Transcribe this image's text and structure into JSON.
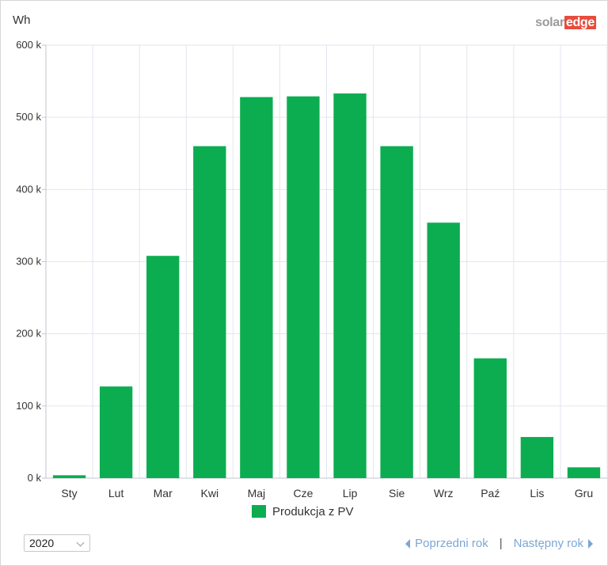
{
  "header": {
    "unit": "Wh",
    "logo_left": "solar",
    "logo_right": "edge"
  },
  "controls": {
    "year_value": "2020",
    "prev_label": "Poprzedni rok",
    "separator": "|",
    "next_label": "Następny rok"
  },
  "colors": {
    "bar": "#0cad50",
    "grid": "#e2e6ee",
    "link": "#7ba7d4"
  },
  "chart_data": {
    "type": "bar",
    "categories": [
      "Sty",
      "Lut",
      "Mar",
      "Kwi",
      "Maj",
      "Cze",
      "Lip",
      "Sie",
      "Wrz",
      "Paź",
      "Lis",
      "Gru"
    ],
    "series": [
      {
        "name": "Produkcja z PV",
        "values": [
          4000,
          127000,
          308000,
          460000,
          528000,
          529000,
          533000,
          460000,
          354000,
          166000,
          57000,
          15000
        ]
      }
    ],
    "ylabel": "Wh",
    "ylim": [
      0,
      600000
    ],
    "yticks": [
      0,
      100000,
      200000,
      300000,
      400000,
      500000,
      600000
    ],
    "ytick_labels": [
      "0 k",
      "100 k",
      "200 k",
      "300 k",
      "400 k",
      "500 k",
      "600 k"
    ],
    "grid": true,
    "legend_position": "bottom-center"
  }
}
